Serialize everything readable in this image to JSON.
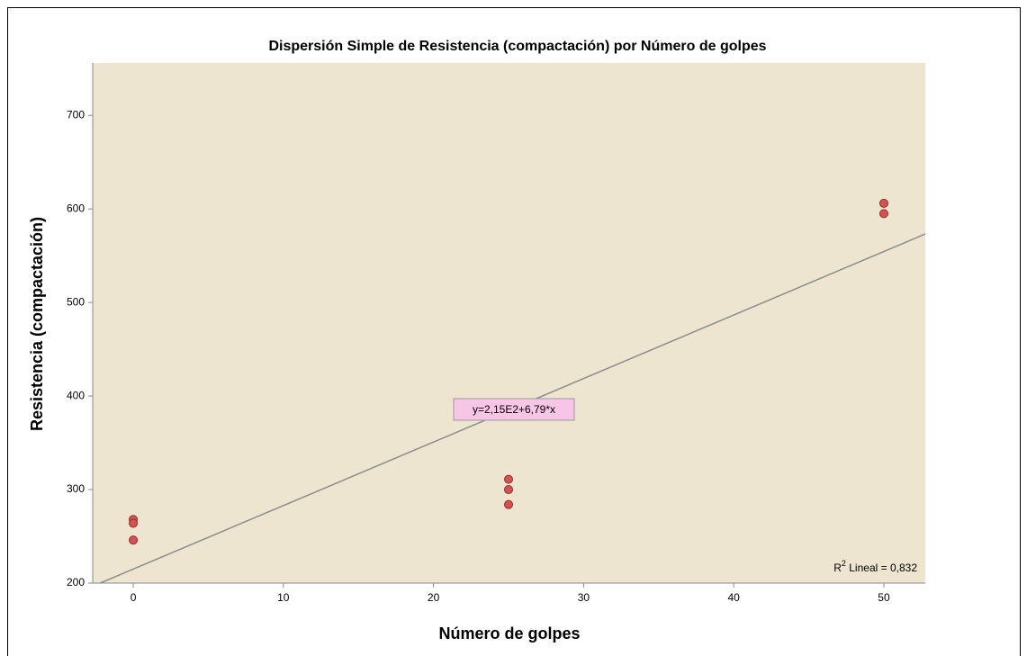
{
  "chart_data": {
    "type": "scatter",
    "title": "Dispersión Simple de Resistencia (compactación) por Número de golpes",
    "x_label": "Número de golpes",
    "y_label": "Resistencia (compactación)",
    "x": [
      0,
      0,
      0,
      25,
      25,
      25,
      50,
      50
    ],
    "values": [
      268,
      264,
      246,
      311,
      300,
      284,
      606,
      595
    ],
    "color": "#d95050",
    "xlim": [
      -2.7,
      52.76
    ],
    "xticks": [
      0,
      10,
      20,
      30,
      40,
      50
    ],
    "ylim": [
      200,
      756
    ],
    "yticks": [
      200,
      300,
      400,
      500,
      600,
      700
    ],
    "fit_line": {
      "label": "y=2,15E2+6,79*x",
      "intercept": 215,
      "slope": 6.79
    },
    "r_squared": {
      "prefix": "R",
      "sup": "2",
      "text": " Lineal = 0,832"
    }
  }
}
